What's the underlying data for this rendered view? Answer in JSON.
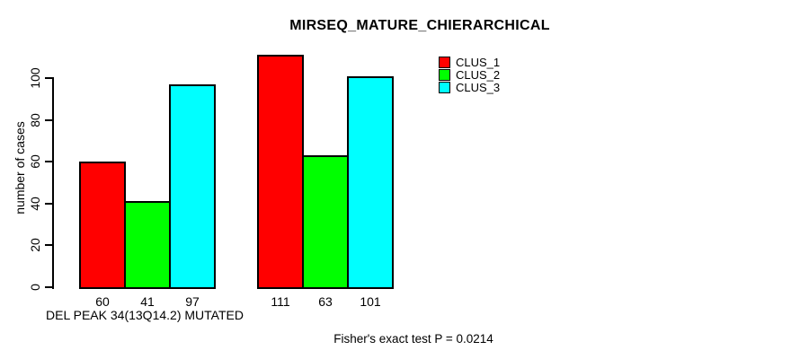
{
  "chart_data": {
    "type": "bar",
    "title": "MIRSEQ_MATURE_CHIERARCHICAL",
    "ylabel": "number of cases",
    "xlabel": "",
    "ylim": [
      0,
      115
    ],
    "yticks": [
      0,
      20,
      40,
      60,
      80,
      100
    ],
    "grid": false,
    "legend_position": "top-right-inside",
    "categories": [
      "DEL PEAK 34(13Q14.2) MUTATED",
      ""
    ],
    "series": [
      {
        "name": "CLUS_1",
        "color": "#ff0000",
        "values": [
          60,
          111
        ]
      },
      {
        "name": "CLUS_2",
        "color": "#00ff00",
        "values": [
          41,
          63
        ]
      },
      {
        "name": "CLUS_3",
        "color": "#00ffff",
        "values": [
          97,
          101
        ]
      }
    ]
  },
  "footer": {
    "fisher_note": "Fisher's exact test P = 0.0214"
  }
}
